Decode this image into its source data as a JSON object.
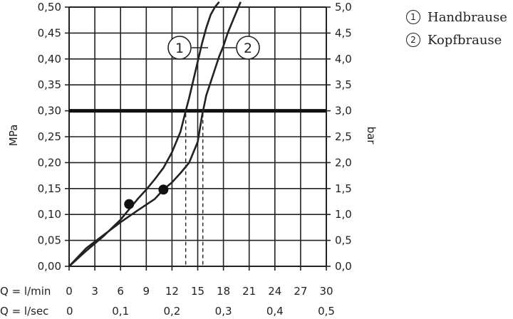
{
  "chart_data": {
    "type": "line",
    "left_axis": {
      "label": "MPa",
      "range": [
        0,
        0.5
      ],
      "ticks": [
        "0,00",
        "0,05",
        "0,10",
        "0,15",
        "0,20",
        "0,25",
        "0,30",
        "0,35",
        "0,40",
        "0,45",
        "0,50"
      ]
    },
    "right_axis": {
      "label": "bar",
      "range": [
        0,
        5
      ],
      "ticks": [
        "0,0",
        "0,5",
        "1,0",
        "1,5",
        "2,0",
        "2,5",
        "3,0",
        "3,5",
        "4,0",
        "4,5",
        "5,0"
      ]
    },
    "x_axis_min": {
      "label": "Q = l/min",
      "range": [
        0,
        30
      ],
      "ticks": [
        "0",
        "3",
        "6",
        "9",
        "12",
        "15",
        "18",
        "21",
        "24",
        "27",
        "30"
      ]
    },
    "x_axis_sec": {
      "label": "Q = l/sec",
      "ticks": [
        "0",
        "0,1",
        "0,2",
        "0,3",
        "0,4",
        "0,5"
      ],
      "tick_values": [
        0,
        0.1,
        0.2,
        0.3,
        0.4,
        0.5
      ]
    },
    "reference_line": {
      "y": 0.3
    },
    "series": [
      {
        "name": "Handbrause",
        "marker_label": "1",
        "x": [
          0,
          2,
          4,
          6,
          7,
          8,
          9,
          10,
          11,
          12,
          13,
          13.6,
          14,
          14.5,
          15,
          15.5,
          16,
          16.5,
          17,
          17.5
        ],
        "y": [
          0,
          0.03,
          0.058,
          0.09,
          0.11,
          0.13,
          0.148,
          0.168,
          0.19,
          0.22,
          0.26,
          0.3,
          0.325,
          0.36,
          0.395,
          0.43,
          0.46,
          0.485,
          0.5,
          0.51
        ],
        "marker": {
          "x": 7,
          "y": 0.12
        },
        "drop_x": 13.6
      },
      {
        "name": "Kopfbrause",
        "marker_label": "2",
        "x": [
          0,
          2,
          4,
          6,
          8,
          10,
          11,
          12,
          13,
          14,
          15,
          15.5,
          16,
          16.5,
          17,
          17.5,
          18,
          18.5,
          19,
          19.5,
          20
        ],
        "y": [
          0,
          0.035,
          0.06,
          0.085,
          0.108,
          0.13,
          0.148,
          0.162,
          0.18,
          0.2,
          0.24,
          0.29,
          0.33,
          0.355,
          0.38,
          0.405,
          0.425,
          0.45,
          0.47,
          0.49,
          0.51
        ],
        "marker": {
          "x": 11,
          "y": 0.148
        },
        "drop_x": 15.6
      }
    ]
  }
}
